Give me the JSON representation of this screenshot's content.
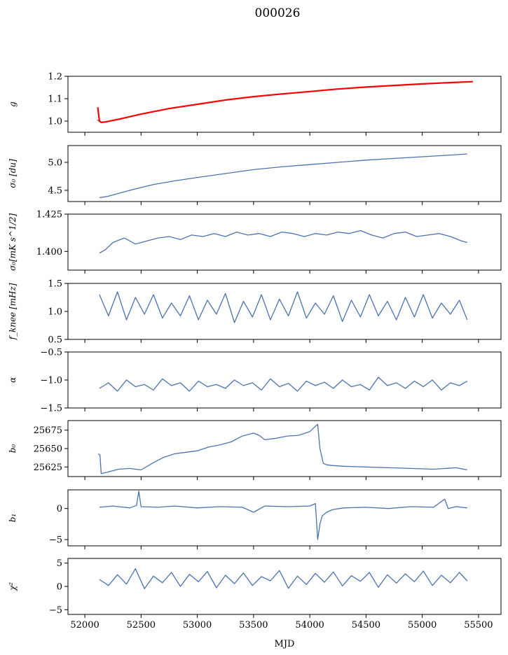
{
  "title": "000026",
  "x_axis": {
    "label": "MJD",
    "ticks": [
      52000,
      52500,
      53000,
      53500,
      54000,
      54500,
      55000,
      55500
    ],
    "tick_labels": [
      "52000",
      "52500",
      "53000",
      "53500",
      "54000",
      "54500",
      "55000",
      "55500"
    ],
    "range": [
      51850,
      55700
    ]
  },
  "colors": {
    "series": "#4c72b0",
    "overlay": "#ff0000"
  },
  "chart_data": [
    {
      "type": "line",
      "name": "g",
      "ylabel": "g",
      "ylim": [
        0.95,
        1.2
      ],
      "yticks": [
        1.0,
        1.1,
        1.2
      ],
      "ytick_labels": [
        "1.0",
        "1.1",
        "1.2"
      ],
      "grid": false,
      "x": [
        52110,
        52130,
        52150,
        52200,
        52300,
        52500,
        52750,
        53000,
        53250,
        53500,
        53750,
        54000,
        54250,
        54500,
        54750,
        55000,
        55250,
        55400
      ],
      "values": [
        1.005,
        0.998,
        0.995,
        0.997,
        1.008,
        1.031,
        1.055,
        1.074,
        1.093,
        1.108,
        1.12,
        1.131,
        1.142,
        1.151,
        1.158,
        1.165,
        1.171,
        1.175
      ],
      "overlay": {
        "x": [
          52115,
          52130,
          52145,
          52180,
          52300,
          52500,
          52750,
          53000,
          53250,
          53500,
          53750,
          54000,
          54250,
          54500,
          54750,
          55000,
          55250,
          55450
        ],
        "values": [
          1.062,
          1.0,
          0.994,
          0.996,
          1.008,
          1.031,
          1.056,
          1.075,
          1.094,
          1.109,
          1.121,
          1.132,
          1.143,
          1.152,
          1.159,
          1.166,
          1.172,
          1.176
        ]
      }
    },
    {
      "type": "line",
      "name": "sigma0",
      "ylabel": "σ₀ [du]",
      "ylim": [
        4.3,
        5.3
      ],
      "yticks": [
        4.5,
        5.0
      ],
      "ytick_labels": [
        "4.5",
        "5.0"
      ],
      "grid": false,
      "x": [
        52130,
        52200,
        52400,
        52600,
        52800,
        53000,
        53250,
        53500,
        53750,
        54000,
        54250,
        54500,
        54750,
        55000,
        55250,
        55400
      ],
      "values": [
        4.37,
        4.39,
        4.5,
        4.6,
        4.67,
        4.73,
        4.8,
        4.87,
        4.92,
        4.96,
        5.0,
        5.04,
        5.07,
        5.1,
        5.13,
        5.15
      ]
    },
    {
      "type": "line",
      "name": "sigma0_rms",
      "ylabel": "σ₀[mK s^1/2]",
      "ylim": [
        1.3875,
        1.425
      ],
      "yticks": [
        1.4,
        1.425
      ],
      "ytick_labels": [
        "1.400",
        "1.425"
      ],
      "grid": false,
      "x": [
        52130,
        52180,
        52250,
        52350,
        52450,
        52550,
        52650,
        52750,
        52850,
        52950,
        53050,
        53150,
        53250,
        53350,
        53450,
        53550,
        53650,
        53750,
        53850,
        53950,
        54050,
        54150,
        54250,
        54350,
        54450,
        54550,
        54650,
        54750,
        54850,
        54950,
        55050,
        55150,
        55250,
        55350,
        55400
      ],
      "values": [
        1.399,
        1.401,
        1.406,
        1.409,
        1.405,
        1.407,
        1.409,
        1.41,
        1.408,
        1.411,
        1.41,
        1.412,
        1.41,
        1.413,
        1.411,
        1.412,
        1.41,
        1.413,
        1.412,
        1.41,
        1.412,
        1.411,
        1.413,
        1.412,
        1.414,
        1.411,
        1.409,
        1.412,
        1.413,
        1.41,
        1.411,
        1.412,
        1.41,
        1.407,
        1.406
      ]
    },
    {
      "type": "line",
      "name": "fknee",
      "ylabel": "f_knee [mHz]",
      "ylim": [
        0.5,
        1.5
      ],
      "yticks": [
        0.5,
        1.0,
        1.5
      ],
      "ytick_labels": [
        "0.5",
        "1.0",
        "1.5"
      ],
      "grid": false,
      "x": [
        52130,
        52210,
        52290,
        52370,
        52450,
        52530,
        52610,
        52690,
        52770,
        52850,
        52930,
        53010,
        53090,
        53170,
        53250,
        53330,
        53410,
        53490,
        53570,
        53650,
        53730,
        53810,
        53890,
        53970,
        54050,
        54130,
        54210,
        54290,
        54370,
        54450,
        54530,
        54610,
        54690,
        54770,
        54850,
        54930,
        55010,
        55090,
        55170,
        55250,
        55330,
        55400
      ],
      "values": [
        1.3,
        0.92,
        1.35,
        0.85,
        1.25,
        0.95,
        1.3,
        0.88,
        1.15,
        0.92,
        1.28,
        0.85,
        1.2,
        0.95,
        1.32,
        0.8,
        1.18,
        0.9,
        1.3,
        0.85,
        1.22,
        0.92,
        1.35,
        0.88,
        1.15,
        0.95,
        1.28,
        0.82,
        1.2,
        0.9,
        1.3,
        0.92,
        1.18,
        0.85,
        1.25,
        0.9,
        1.3,
        0.88,
        1.15,
        0.95,
        1.2,
        0.85
      ]
    },
    {
      "type": "line",
      "name": "alpha",
      "ylabel": "α",
      "ylim": [
        -1.5,
        -0.5
      ],
      "yticks": [
        -1.5,
        -1.0,
        -0.5
      ],
      "ytick_labels": [
        "−1.5",
        "−1.0",
        "−0.5"
      ],
      "grid": false,
      "x": [
        52130,
        52210,
        52290,
        52370,
        52450,
        52530,
        52610,
        52690,
        52770,
        52850,
        52930,
        53010,
        53090,
        53170,
        53250,
        53330,
        53410,
        53490,
        53570,
        53650,
        53730,
        53810,
        53890,
        53970,
        54050,
        54130,
        54210,
        54290,
        54370,
        54450,
        54530,
        54610,
        54690,
        54770,
        54850,
        54930,
        55010,
        55090,
        55170,
        55250,
        55330,
        55400
      ],
      "values": [
        -1.15,
        -1.05,
        -1.2,
        -1.0,
        -1.12,
        -1.08,
        -1.18,
        -0.98,
        -1.1,
        -1.05,
        -1.2,
        -1.02,
        -1.12,
        -1.08,
        -1.15,
        -1.0,
        -1.1,
        -1.05,
        -1.18,
        -0.98,
        -1.12,
        -1.06,
        -1.2,
        -1.02,
        -1.1,
        -1.04,
        -1.15,
        -1.0,
        -1.12,
        -1.08,
        -1.18,
        -0.95,
        -1.1,
        -1.05,
        -1.15,
        -1.02,
        -1.12,
        -1.0,
        -1.18,
        -1.05,
        -1.1,
        -1.02
      ]
    },
    {
      "type": "line",
      "name": "b0",
      "ylabel": "b₀",
      "ylim": [
        25612,
        25688
      ],
      "yticks": [
        25625,
        25650,
        25675
      ],
      "ytick_labels": [
        "25625",
        "25650",
        "25675"
      ],
      "grid": false,
      "x": [
        52120,
        52135,
        52145,
        52200,
        52300,
        52400,
        52500,
        52600,
        52700,
        52800,
        52900,
        53000,
        53100,
        53200,
        53300,
        53400,
        53500,
        53550,
        53600,
        53700,
        53800,
        53900,
        54000,
        54070,
        54090,
        54120,
        54150,
        54200,
        54300,
        54500,
        54700,
        54900,
        55100,
        55300,
        55400
      ],
      "values": [
        25643,
        25641,
        25616,
        25618,
        25622,
        25623,
        25621,
        25630,
        25638,
        25643,
        25645,
        25647,
        25652,
        25655,
        25659,
        25667,
        25671,
        25668,
        25662,
        25664,
        25667,
        25668,
        25673,
        25683,
        25650,
        25630,
        25628,
        25627,
        25626,
        25625,
        25624,
        25623,
        25622,
        25624,
        25621
      ]
    },
    {
      "type": "line",
      "name": "b1",
      "ylabel": "b₁",
      "ylim": [
        -6,
        3
      ],
      "yticks": [
        -5,
        0
      ],
      "ytick_labels": [
        "−5",
        "0"
      ],
      "grid": false,
      "x": [
        52130,
        52250,
        52400,
        52460,
        52480,
        52500,
        52650,
        52800,
        53000,
        53200,
        53400,
        53500,
        53600,
        53800,
        54000,
        54050,
        54070,
        54090,
        54110,
        54150,
        54200,
        54300,
        54500,
        54700,
        54900,
        55100,
        55200,
        55230,
        55300,
        55400
      ],
      "values": [
        0.2,
        0.4,
        0.1,
        0.5,
        2.8,
        0.3,
        0.2,
        0.4,
        0.1,
        0.3,
        0.2,
        -0.6,
        0.4,
        0.3,
        0.4,
        0.8,
        -5.0,
        -2.5,
        -1.2,
        -0.6,
        -0.2,
        0.1,
        0.2,
        0.0,
        0.3,
        0.2,
        1.5,
        0.0,
        0.3,
        0.1
      ]
    },
    {
      "type": "line",
      "name": "chi2",
      "ylabel": "χ²",
      "ylim": [
        -6,
        6
      ],
      "yticks": [
        -5,
        0,
        5
      ],
      "ytick_labels": [
        "−5",
        "0",
        "5"
      ],
      "grid": false,
      "x": [
        52130,
        52210,
        52290,
        52370,
        52450,
        52530,
        52610,
        52690,
        52770,
        52850,
        52930,
        53010,
        53090,
        53170,
        53250,
        53330,
        53410,
        53490,
        53570,
        53650,
        53730,
        53810,
        53890,
        53970,
        54050,
        54130,
        54210,
        54290,
        54370,
        54450,
        54530,
        54610,
        54690,
        54770,
        54850,
        54930,
        55010,
        55090,
        55170,
        55250,
        55330,
        55400
      ],
      "values": [
        1.5,
        0.2,
        2.5,
        0.5,
        3.8,
        -0.5,
        2.2,
        0.8,
        3.0,
        0.0,
        2.6,
        1.0,
        3.2,
        -0.3,
        2.4,
        0.6,
        2.9,
        0.2,
        2.1,
        1.2,
        3.4,
        -0.4,
        2.2,
        0.4,
        2.8,
        0.9,
        3.1,
        0.1,
        2.3,
        1.1,
        3.0,
        -0.2,
        2.5,
        0.7,
        2.7,
        1.0,
        3.3,
        0.2,
        2.4,
        0.8,
        3.0,
        1.2
      ]
    }
  ]
}
